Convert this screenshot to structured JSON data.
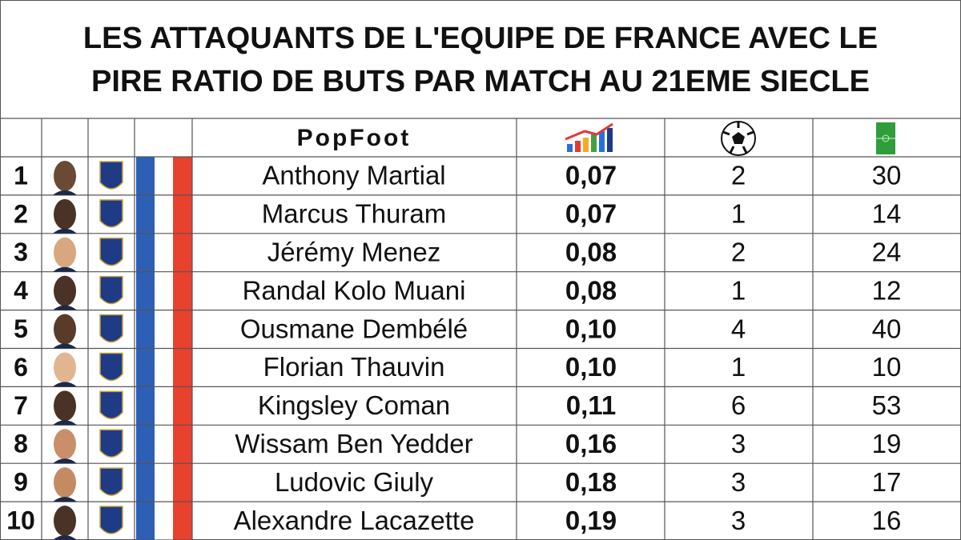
{
  "title": [
    "LES ATTAQUANTS DE L'EQUIPE DE FRANCE AVEC LE",
    "PIRE RATIO DE BUTS PAR MATCH AU 21EME SIECLE"
  ],
  "table": {
    "logo": "PopFoot",
    "rows": [
      [
        "1",
        "Anthony Martial",
        "0,07",
        "2",
        "30"
      ],
      [
        "2",
        "Marcus Thuram",
        "0,07",
        "1",
        "14"
      ],
      [
        "3",
        "Jérémy Menez",
        "0,08",
        "2",
        "24"
      ],
      [
        "4",
        "Randal Kolo Muani",
        "0,08",
        "1",
        "12"
      ],
      [
        "5",
        "Ousmane Dembélé",
        "0,10",
        "4",
        "40"
      ],
      [
        "6",
        "Florian Thauvin",
        "0,10",
        "1",
        "10"
      ],
      [
        "7",
        "Kingsley Coman",
        "0,11",
        "6",
        "53"
      ],
      [
        "8",
        "Wissam Ben Yedder",
        "0,16",
        "3",
        "19"
      ],
      [
        "9",
        "Ludovic Giuly",
        "0,18",
        "3",
        "17"
      ],
      [
        "10",
        "Alexandre Lacazette",
        "0,19",
        "3",
        "16"
      ]
    ]
  }
}
